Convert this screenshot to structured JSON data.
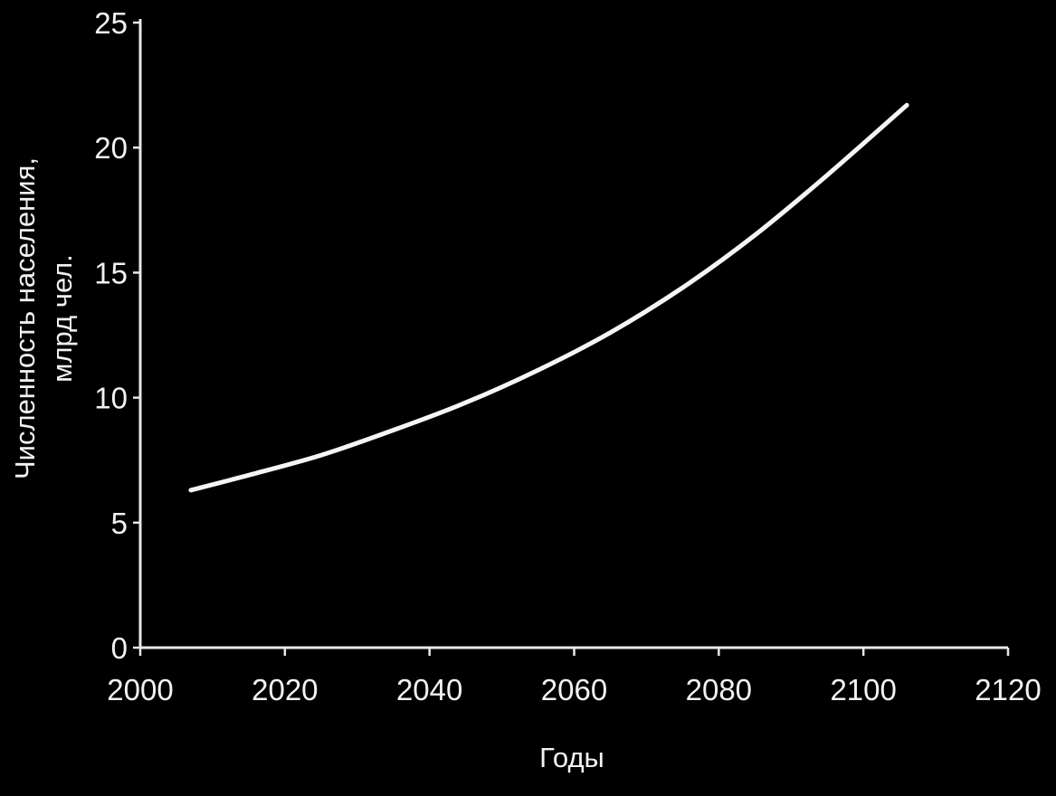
{
  "chart_data": {
    "type": "line",
    "title": "",
    "xlabel": "Годы",
    "ylabel_line1": "Численность населения,",
    "ylabel_line2": "млрд чел.",
    "xlim": [
      2000,
      2120
    ],
    "ylim": [
      0,
      25
    ],
    "xticks": [
      2000,
      2020,
      2040,
      2060,
      2080,
      2100,
      2120
    ],
    "yticks": [
      0,
      5,
      10,
      15,
      20,
      25
    ],
    "grid": false,
    "legend": "none",
    "series": [
      {
        "color": "#f5f5f5",
        "x": [
          2007,
          2015,
          2025,
          2035,
          2045,
          2055,
          2065,
          2075,
          2085,
          2095,
          2106
        ],
        "y": [
          6.3,
          6.9,
          7.7,
          8.7,
          9.8,
          11.1,
          12.6,
          14.4,
          16.5,
          18.9,
          21.7
        ]
      }
    ]
  }
}
